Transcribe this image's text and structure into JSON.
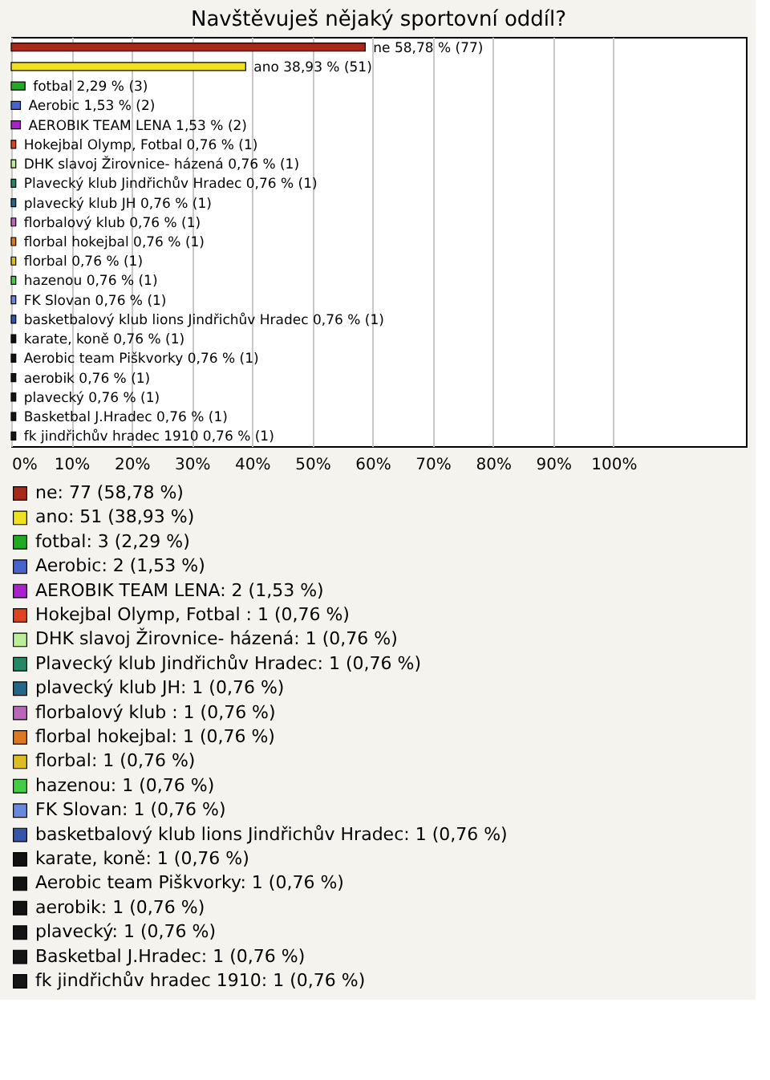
{
  "chart_data": {
    "type": "bar",
    "orientation": "horizontal",
    "title": "Navštěvuješ nějaký sportovní oddíl?",
    "categories": [
      "ne",
      "ano",
      "fotbal",
      "Aerobic",
      "AEROBIK TEAM LENA",
      "Hokejbal Olymp, Fotbal",
      "DHK slavoj Žirovnice- házená",
      "Plavecký klub Jindřichův Hradec",
      "plavecký klub JH",
      "florbalový klub",
      "florbal hokejbal",
      "florbal",
      "hazenou",
      "FK Slovan",
      "basketbalový klub lions Jindřichův Hradec",
      "karate, koně",
      "Aerobic team Piškvorky",
      "aerobik",
      "plavecký",
      "Basketbal J.Hradec",
      "fk jindřichův hradec 1910"
    ],
    "series": [
      {
        "name": "ne: 77 (58,78 %)",
        "color": "#a8281a",
        "values": [
          58.78,
          null,
          null,
          null,
          null,
          null,
          null,
          null,
          null,
          null,
          null,
          null,
          null,
          null,
          null,
          null,
          null,
          null,
          null,
          null,
          null
        ],
        "value_labels": [
          "58,78 % (77)",
          null,
          null,
          null,
          null,
          null,
          null,
          null,
          null,
          null,
          null,
          null,
          null,
          null,
          null,
          null,
          null,
          null,
          null,
          null,
          null
        ]
      },
      {
        "name": "ano: 51 (38,93 %)",
        "color": "#f0e020",
        "values": [
          null,
          38.93,
          null,
          null,
          null,
          null,
          null,
          null,
          null,
          null,
          null,
          null,
          null,
          null,
          null,
          null,
          null,
          null,
          null,
          null,
          null
        ],
        "value_labels": [
          null,
          "38,93 % (51)",
          null,
          null,
          null,
          null,
          null,
          null,
          null,
          null,
          null,
          null,
          null,
          null,
          null,
          null,
          null,
          null,
          null,
          null,
          null
        ]
      },
      {
        "name": "fotbal: 3 (2,29 %)",
        "color": "#22aa22",
        "values": [
          null,
          null,
          2.29,
          null,
          null,
          null,
          null,
          null,
          null,
          null,
          null,
          null,
          null,
          null,
          null,
          null,
          null,
          null,
          null,
          null,
          null
        ],
        "value_labels": [
          null,
          null,
          "2,29 % (3)",
          null,
          null,
          null,
          null,
          null,
          null,
          null,
          null,
          null,
          null,
          null,
          null,
          null,
          null,
          null,
          null,
          null,
          null
        ]
      },
      {
        "name": "Aerobic: 2 (1,53 %)",
        "color": "#4466cc",
        "values": [
          null,
          null,
          null,
          1.53,
          null,
          null,
          null,
          null,
          null,
          null,
          null,
          null,
          null,
          null,
          null,
          null,
          null,
          null,
          null,
          null,
          null
        ],
        "value_labels": [
          null,
          null,
          null,
          "1,53 % (2)",
          null,
          null,
          null,
          null,
          null,
          null,
          null,
          null,
          null,
          null,
          null,
          null,
          null,
          null,
          null,
          null,
          null
        ]
      },
      {
        "name": "AEROBIK TEAM LENA: 2 (1,53 %)",
        "color": "#aa22cc",
        "values": [
          null,
          null,
          null,
          null,
          1.53,
          null,
          null,
          null,
          null,
          null,
          null,
          null,
          null,
          null,
          null,
          null,
          null,
          null,
          null,
          null,
          null
        ],
        "value_labels": [
          null,
          null,
          null,
          null,
          "1,53 % (2)",
          null,
          null,
          null,
          null,
          null,
          null,
          null,
          null,
          null,
          null,
          null,
          null,
          null,
          null,
          null,
          null
        ]
      },
      {
        "name": "Hokejbal Olymp, Fotbal : 1 (0,76 %)",
        "color": "#dd4422",
        "values": [
          null,
          null,
          null,
          null,
          null,
          0.76,
          null,
          null,
          null,
          null,
          null,
          null,
          null,
          null,
          null,
          null,
          null,
          null,
          null,
          null,
          null
        ],
        "value_labels": [
          null,
          null,
          null,
          null,
          null,
          "0,76 % (1)",
          null,
          null,
          null,
          null,
          null,
          null,
          null,
          null,
          null,
          null,
          null,
          null,
          null,
          null,
          null
        ]
      },
      {
        "name": "DHK slavoj Žirovnice- házená: 1 (0,76 %)",
        "color": "#bbee99",
        "values": [
          null,
          null,
          null,
          null,
          null,
          null,
          0.76,
          null,
          null,
          null,
          null,
          null,
          null,
          null,
          null,
          null,
          null,
          null,
          null,
          null,
          null
        ],
        "value_labels": [
          null,
          null,
          null,
          null,
          null,
          null,
          "0,76 % (1)",
          null,
          null,
          null,
          null,
          null,
          null,
          null,
          null,
          null,
          null,
          null,
          null,
          null,
          null
        ]
      },
      {
        "name": "Plavecký klub Jindřichův Hradec: 1 (0,76 %)",
        "color": "#228866",
        "values": [
          null,
          null,
          null,
          null,
          null,
          null,
          null,
          0.76,
          null,
          null,
          null,
          null,
          null,
          null,
          null,
          null,
          null,
          null,
          null,
          null,
          null
        ],
        "value_labels": [
          null,
          null,
          null,
          null,
          null,
          null,
          null,
          "0,76 % (1)",
          null,
          null,
          null,
          null,
          null,
          null,
          null,
          null,
          null,
          null,
          null,
          null,
          null
        ]
      },
      {
        "name": "plavecký klub JH: 1 (0,76 %)",
        "color": "#226688",
        "values": [
          null,
          null,
          null,
          null,
          null,
          null,
          null,
          null,
          0.76,
          null,
          null,
          null,
          null,
          null,
          null,
          null,
          null,
          null,
          null,
          null,
          null
        ],
        "value_labels": [
          null,
          null,
          null,
          null,
          null,
          null,
          null,
          null,
          "0,76 % (1)",
          null,
          null,
          null,
          null,
          null,
          null,
          null,
          null,
          null,
          null,
          null,
          null
        ]
      },
      {
        "name": "florbalový klub : 1 (0,76 %)",
        "color": "#bb66bb",
        "values": [
          null,
          null,
          null,
          null,
          null,
          null,
          null,
          null,
          null,
          0.76,
          null,
          null,
          null,
          null,
          null,
          null,
          null,
          null,
          null,
          null,
          null
        ],
        "value_labels": [
          null,
          null,
          null,
          null,
          null,
          null,
          null,
          null,
          null,
          "0,76 % (1)",
          null,
          null,
          null,
          null,
          null,
          null,
          null,
          null,
          null,
          null,
          null
        ]
      },
      {
        "name": "florbal hokejbal: 1 (0,76 %)",
        "color": "#dd7722",
        "values": [
          null,
          null,
          null,
          null,
          null,
          null,
          null,
          null,
          null,
          null,
          0.76,
          null,
          null,
          null,
          null,
          null,
          null,
          null,
          null,
          null,
          null
        ],
        "value_labels": [
          null,
          null,
          null,
          null,
          null,
          null,
          null,
          null,
          null,
          null,
          "0,76 % (1)",
          null,
          null,
          null,
          null,
          null,
          null,
          null,
          null,
          null,
          null
        ]
      },
      {
        "name": "florbal: 1 (0,76 %)",
        "color": "#ddbb22",
        "values": [
          null,
          null,
          null,
          null,
          null,
          null,
          null,
          null,
          null,
          null,
          null,
          0.76,
          null,
          null,
          null,
          null,
          null,
          null,
          null,
          null,
          null
        ],
        "value_labels": [
          null,
          null,
          null,
          null,
          null,
          null,
          null,
          null,
          null,
          null,
          null,
          "0,76 % (1)",
          null,
          null,
          null,
          null,
          null,
          null,
          null,
          null,
          null
        ]
      },
      {
        "name": "hazenou: 1 (0,76 %)",
        "color": "#44cc44",
        "values": [
          null,
          null,
          null,
          null,
          null,
          null,
          null,
          null,
          null,
          null,
          null,
          null,
          0.76,
          null,
          null,
          null,
          null,
          null,
          null,
          null,
          null
        ],
        "value_labels": [
          null,
          null,
          null,
          null,
          null,
          null,
          null,
          null,
          null,
          null,
          null,
          null,
          "0,76 % (1)",
          null,
          null,
          null,
          null,
          null,
          null,
          null,
          null
        ]
      },
      {
        "name": "FK Slovan: 1 (0,76 %)",
        "color": "#6688dd",
        "values": [
          null,
          null,
          null,
          null,
          null,
          null,
          null,
          null,
          null,
          null,
          null,
          null,
          null,
          0.76,
          null,
          null,
          null,
          null,
          null,
          null,
          null
        ],
        "value_labels": [
          null,
          null,
          null,
          null,
          null,
          null,
          null,
          null,
          null,
          null,
          null,
          null,
          null,
          "0,76 % (1)",
          null,
          null,
          null,
          null,
          null,
          null,
          null
        ]
      },
      {
        "name": "basketbalový klub lions Jindřichův Hradec: 1 (0,76 %)",
        "color": "#3355aa",
        "values": [
          null,
          null,
          null,
          null,
          null,
          null,
          null,
          null,
          null,
          null,
          null,
          null,
          null,
          null,
          0.76,
          null,
          null,
          null,
          null,
          null,
          null
        ],
        "value_labels": [
          null,
          null,
          null,
          null,
          null,
          null,
          null,
          null,
          null,
          null,
          null,
          null,
          null,
          null,
          "0,76 % (1)",
          null,
          null,
          null,
          null,
          null,
          null
        ]
      },
      {
        "name": "karate, koně: 1 (0,76 %)",
        "color": "#111111",
        "values": [
          null,
          null,
          null,
          null,
          null,
          null,
          null,
          null,
          null,
          null,
          null,
          null,
          null,
          null,
          null,
          0.76,
          null,
          null,
          null,
          null,
          null
        ],
        "value_labels": [
          null,
          null,
          null,
          null,
          null,
          null,
          null,
          null,
          null,
          null,
          null,
          null,
          null,
          null,
          null,
          "0,76 % (1)",
          null,
          null,
          null,
          null,
          null
        ]
      },
      {
        "name": "Aerobic team Piškvorky: 1 (0,76 %)",
        "color": "#121212",
        "values": [
          null,
          null,
          null,
          null,
          null,
          null,
          null,
          null,
          null,
          null,
          null,
          null,
          null,
          null,
          null,
          null,
          0.76,
          null,
          null,
          null,
          null
        ],
        "value_labels": [
          null,
          null,
          null,
          null,
          null,
          null,
          null,
          null,
          null,
          null,
          null,
          null,
          null,
          null,
          null,
          null,
          "0,76 % (1)",
          null,
          null,
          null,
          null
        ]
      },
      {
        "name": "aerobik: 1 (0,76 %)",
        "color": "#131313",
        "values": [
          null,
          null,
          null,
          null,
          null,
          null,
          null,
          null,
          null,
          null,
          null,
          null,
          null,
          null,
          null,
          null,
          null,
          0.76,
          null,
          null,
          null
        ],
        "value_labels": [
          null,
          null,
          null,
          null,
          null,
          null,
          null,
          null,
          null,
          null,
          null,
          null,
          null,
          null,
          null,
          null,
          null,
          "0,76 % (1)",
          null,
          null,
          null
        ]
      },
      {
        "name": "plavecký: 1 (0,76 %)",
        "color": "#141414",
        "values": [
          null,
          null,
          null,
          null,
          null,
          null,
          null,
          null,
          null,
          null,
          null,
          null,
          null,
          null,
          null,
          null,
          null,
          null,
          0.76,
          null,
          null
        ],
        "value_labels": [
          null,
          null,
          null,
          null,
          null,
          null,
          null,
          null,
          null,
          null,
          null,
          null,
          null,
          null,
          null,
          null,
          null,
          null,
          "0,76 % (1)",
          null,
          null
        ]
      },
      {
        "name": "Basketbal J.Hradec: 1 (0,76 %)",
        "color": "#151515",
        "values": [
          null,
          null,
          null,
          null,
          null,
          null,
          null,
          null,
          null,
          null,
          null,
          null,
          null,
          null,
          null,
          null,
          null,
          null,
          null,
          0.76,
          null
        ],
        "value_labels": [
          null,
          null,
          null,
          null,
          null,
          null,
          null,
          null,
          null,
          null,
          null,
          null,
          null,
          null,
          null,
          null,
          null,
          null,
          null,
          "0,76 % (1)",
          null
        ]
      },
      {
        "name": "fk jindřichův hradec 1910: 1 (0,76 %)",
        "color": "#161616",
        "values": [
          null,
          null,
          null,
          null,
          null,
          null,
          null,
          null,
          null,
          null,
          null,
          null,
          null,
          null,
          null,
          null,
          null,
          null,
          null,
          null,
          0.76
        ],
        "value_labels": [
          null,
          null,
          null,
          null,
          null,
          null,
          null,
          null,
          null,
          null,
          null,
          null,
          null,
          null,
          null,
          null,
          null,
          null,
          null,
          null,
          "0,76 % (1)"
        ]
      }
    ],
    "xlim": [
      0,
      122
    ],
    "xticks": [
      {
        "value": 0,
        "label": "0%"
      },
      {
        "value": 10,
        "label": "10%"
      },
      {
        "value": 20,
        "label": "20%"
      },
      {
        "value": 30,
        "label": "30%"
      },
      {
        "value": 40,
        "label": "40%"
      },
      {
        "value": 50,
        "label": "50%"
      },
      {
        "value": 60,
        "label": "60%"
      },
      {
        "value": 70,
        "label": "70%"
      },
      {
        "value": 80,
        "label": "80%"
      },
      {
        "value": 90,
        "label": "90%"
      },
      {
        "value": 100,
        "label": "100%"
      }
    ],
    "grid": "x",
    "tick_labels": "x",
    "legend": "bottom"
  }
}
